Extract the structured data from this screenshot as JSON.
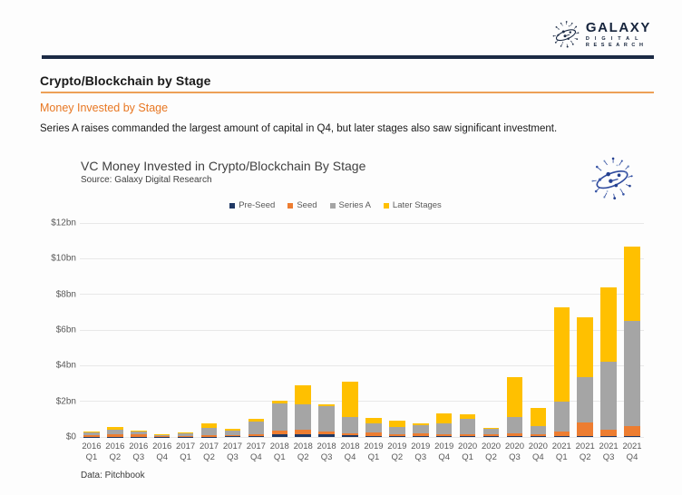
{
  "logo": {
    "name": "GALAXY",
    "sub_line1": "DIGITAL",
    "sub_line2": "RESEARCH"
  },
  "heading": {
    "title": "Crypto/Blockchain by Stage",
    "subtitle": "Money Invested by Stage",
    "description": "Series A raises commanded the largest amount of capital in Q4, but later stages also saw significant investment."
  },
  "chart": {
    "title": "VC Money Invested in Crypto/Blockchain By Stage",
    "source": "Source: Galaxy Digital Research",
    "footer": "Data: Pitchbook"
  },
  "colors": {
    "brand_navy": "#16243c",
    "accent_orange": "#e87722",
    "gridline": "#e8e8e8"
  },
  "chart_data": {
    "type": "bar",
    "stacked": true,
    "title": "VC Money Invested in Crypto/Blockchain By Stage",
    "xlabel": "",
    "ylabel": "",
    "ylim": [
      0,
      12
    ],
    "yticks": [
      0,
      2,
      4,
      6,
      8,
      10,
      12
    ],
    "ytick_labels": [
      "$0",
      "$2bn",
      "$4bn",
      "$6bn",
      "$8bn",
      "$10bn",
      "$12bn"
    ],
    "grid": true,
    "legend_position": "top",
    "categories": [
      "2016 Q1",
      "2016 Q2",
      "2016 Q3",
      "2016 Q4",
      "2017 Q1",
      "2017 Q2",
      "2017 Q3",
      "2017 Q4",
      "2018 Q1",
      "2018 Q2",
      "2018 Q3",
      "2018 Q4",
      "2019 Q1",
      "2019 Q2",
      "2019 Q3",
      "2019 Q4",
      "2020 Q1",
      "2020 Q2",
      "2020 Q3",
      "2020 Q4",
      "2021 Q1",
      "2021 Q2",
      "2021 Q3",
      "2021 Q4"
    ],
    "series": [
      {
        "name": "Pre-Seed",
        "color": "#1f3864",
        "values": [
          0.02,
          0.02,
          0.02,
          0.01,
          0.01,
          0.02,
          0.03,
          0.03,
          0.13,
          0.16,
          0.13,
          0.09,
          0.05,
          0.04,
          0.03,
          0.03,
          0.03,
          0.03,
          0.04,
          0.03,
          0.04,
          0.07,
          0.05,
          0.07
        ]
      },
      {
        "name": "Seed",
        "color": "#ed7d31",
        "values": [
          0.1,
          0.15,
          0.12,
          0.06,
          0.06,
          0.1,
          0.08,
          0.1,
          0.24,
          0.27,
          0.18,
          0.13,
          0.22,
          0.13,
          0.16,
          0.14,
          0.14,
          0.12,
          0.17,
          0.12,
          0.26,
          0.75,
          0.37,
          0.53
        ]
      },
      {
        "name": "Series A",
        "color": "#a5a5a5",
        "values": [
          0.15,
          0.25,
          0.18,
          0.05,
          0.12,
          0.38,
          0.26,
          0.72,
          1.5,
          1.41,
          1.41,
          0.88,
          0.5,
          0.38,
          0.47,
          0.57,
          0.83,
          0.32,
          0.91,
          0.48,
          1.7,
          2.53,
          3.8,
          5.9
        ]
      },
      {
        "name": "Later Stages",
        "color": "#ffc000",
        "values": [
          0.05,
          0.13,
          0.06,
          0.01,
          0.05,
          0.27,
          0.11,
          0.15,
          0.17,
          1.06,
          0.09,
          2.01,
          0.32,
          0.37,
          0.13,
          0.59,
          0.25,
          0.05,
          2.22,
          1.0,
          5.25,
          3.38,
          4.15,
          4.18
        ]
      }
    ]
  }
}
